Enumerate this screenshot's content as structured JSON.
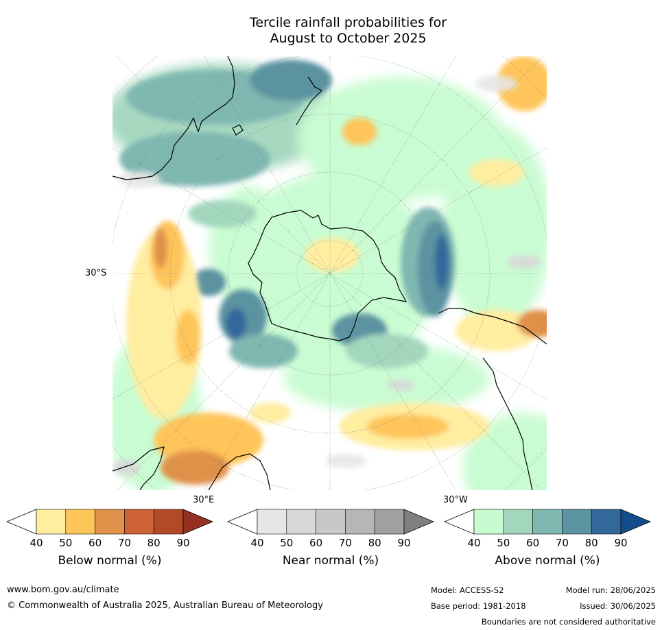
{
  "title": {
    "line1": "Tercile rainfall probabilities for",
    "line2": "August to October 2025"
  },
  "map": {
    "projection": "south polar stereographic",
    "labels": {
      "lat": "30°S",
      "east": "30°E",
      "west": "30°W"
    }
  },
  "colorbars": [
    {
      "id": "below",
      "title": "Below normal (%)",
      "ticks": [
        "40",
        "50",
        "60",
        "70",
        "80",
        "90"
      ],
      "colors": [
        "#ffeda0",
        "#fec55a",
        "#e0914a",
        "#cd6234",
        "#b24a28",
        "#963020"
      ]
    },
    {
      "id": "near",
      "title": "Near normal (%)",
      "ticks": [
        "40",
        "50",
        "60",
        "70",
        "80",
        "90"
      ],
      "colors": [
        "#e6e6e6",
        "#d8d8d8",
        "#c8c8c8",
        "#b6b6b6",
        "#a0a0a0",
        "#808080"
      ]
    },
    {
      "id": "above",
      "title": "Above normal (%)",
      "ticks": [
        "40",
        "50",
        "60",
        "70",
        "80",
        "90"
      ],
      "colors": [
        "#c7fcd0",
        "#a3d7bd",
        "#7fb7b1",
        "#5b93a1",
        "#33689b",
        "#124e8c"
      ]
    }
  ],
  "footer": {
    "website": "www.bom.gov.au/climate",
    "copyright": "© Commonwealth of Australia 2025, Australian Bureau of Meteorology",
    "model": "Model: ACCESS-S2",
    "base_period": "Base period: 1981-2018",
    "model_run": "Model run: 28/06/2025",
    "issued": "Issued: 30/06/2025",
    "disclaimer": "Boundaries are not considered authoritative"
  }
}
